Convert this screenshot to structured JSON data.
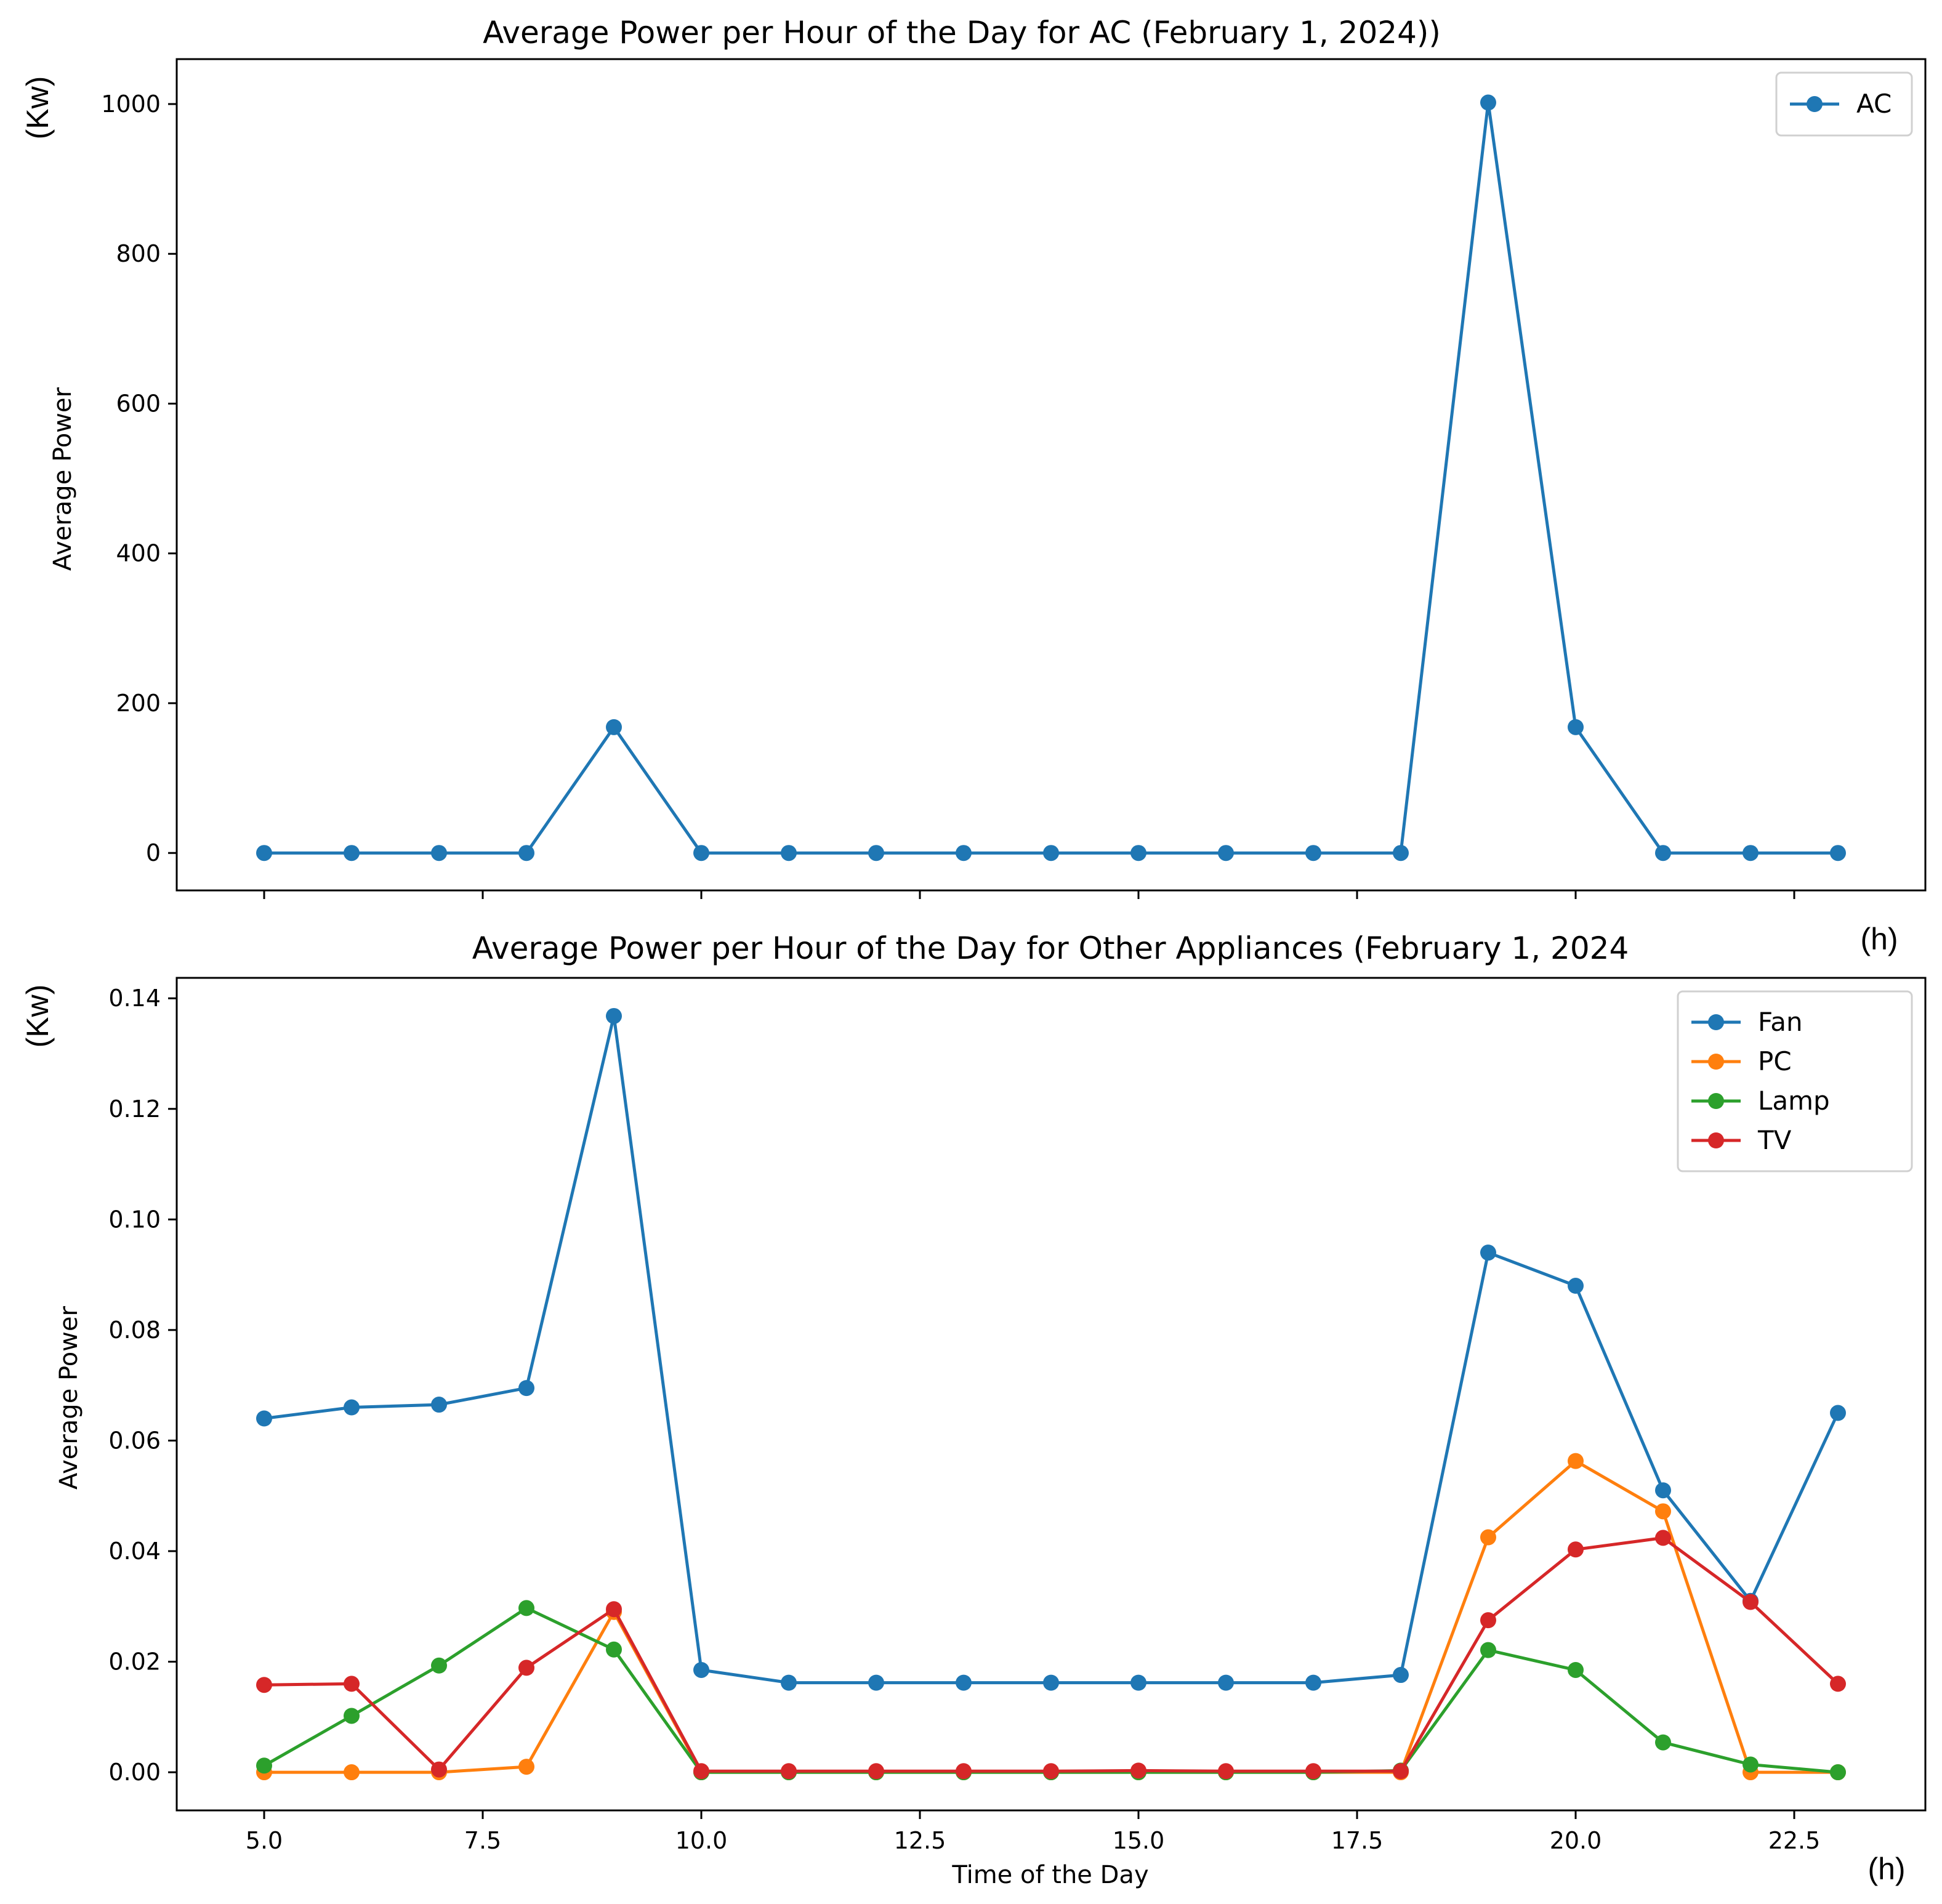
{
  "chart_data": [
    {
      "type": "line",
      "title": "Average Power per Hour of the Day for AC (February 1, 2024))",
      "xlabel": "",
      "ylabel": "Average Power",
      "y_unit": "(Kw)",
      "x_unit": "(h)",
      "xlim": [
        4.0,
        24.0
      ],
      "ylim": [
        -50,
        1060
      ],
      "x_ticks": [
        5.0,
        7.5,
        10.0,
        12.5,
        15.0,
        17.5,
        20.0,
        22.5
      ],
      "y_ticks": [
        0,
        200,
        400,
        600,
        800,
        1000
      ],
      "y_tick_labels": [
        "0",
        "200",
        "400",
        "600",
        "800",
        "1000"
      ],
      "show_x_tick_labels": false,
      "legend_position": "top-right",
      "x": [
        5,
        6,
        7,
        8,
        9,
        10,
        11,
        12,
        13,
        14,
        15,
        16,
        17,
        18,
        19,
        20,
        21,
        22,
        23
      ],
      "series": [
        {
          "name": "AC",
          "color": "#1f77b4",
          "values": [
            0,
            0,
            0,
            0,
            168,
            0,
            0,
            0,
            0,
            0,
            0,
            0,
            0,
            0,
            1002,
            168,
            0,
            0,
            0
          ]
        }
      ]
    },
    {
      "type": "line",
      "title": "Average Power per Hour of the Day for Other Appliances (February 1, 2024",
      "xlabel": "Time of the Day",
      "ylabel": "Average Power",
      "y_unit": "(Kw)",
      "x_unit": "(h)",
      "xlim": [
        4.0,
        24.0
      ],
      "ylim": [
        -0.0069,
        0.1437
      ],
      "x_ticks": [
        5.0,
        7.5,
        10.0,
        12.5,
        15.0,
        17.5,
        20.0,
        22.5
      ],
      "x_tick_labels": [
        "5.0",
        "7.5",
        "10.0",
        "12.5",
        "15.0",
        "17.5",
        "20.0",
        "22.5"
      ],
      "y_ticks": [
        0,
        0.02,
        0.04,
        0.06,
        0.08,
        0.1,
        0.12,
        0.14
      ],
      "y_tick_labels": [
        "0.00",
        "0.02",
        "0.04",
        "0.06",
        "0.08",
        "0.10",
        "0.12",
        "0.14"
      ],
      "show_x_tick_labels": true,
      "legend_position": "top-right",
      "x": [
        5,
        6,
        7,
        8,
        9,
        10,
        11,
        12,
        13,
        14,
        15,
        16,
        17,
        18,
        19,
        20,
        21,
        22,
        23
      ],
      "series": [
        {
          "name": "Fan",
          "color": "#1f77b4",
          "values": [
            0.064,
            0.066,
            0.0665,
            0.0695,
            0.1368,
            0.0185,
            0.0162,
            0.0162,
            0.0162,
            0.0162,
            0.0162,
            0.0162,
            0.0162,
            0.0176,
            0.094,
            0.088,
            0.051,
            0.031,
            0.065
          ]
        },
        {
          "name": "PC",
          "color": "#ff7f0e",
          "values": [
            0.0,
            0.0,
            0.0,
            0.001,
            0.029,
            0.0,
            0.0,
            0.0,
            0.0,
            0.0,
            0.0,
            0.0,
            0.0,
            0.0,
            0.0425,
            0.0563,
            0.0472,
            0.0,
            0.0
          ]
        },
        {
          "name": "Lamp",
          "color": "#2ca02c",
          "values": [
            0.0012,
            0.0102,
            0.0193,
            0.0297,
            0.0222,
            0.0,
            0.0,
            0.0,
            0.0,
            0.0,
            0.0,
            0.0,
            0.0,
            0.0003,
            0.0221,
            0.0185,
            0.0054,
            0.0014,
            0.0
          ]
        },
        {
          "name": "TV",
          "color": "#d62728",
          "values": [
            0.0158,
            0.016,
            0.0005,
            0.0189,
            0.0295,
            0.0002,
            0.0002,
            0.0002,
            0.0002,
            0.0002,
            0.0003,
            0.0002,
            0.0002,
            0.0002,
            0.0275,
            0.0403,
            0.0424,
            0.0308,
            0.016
          ]
        }
      ]
    }
  ]
}
